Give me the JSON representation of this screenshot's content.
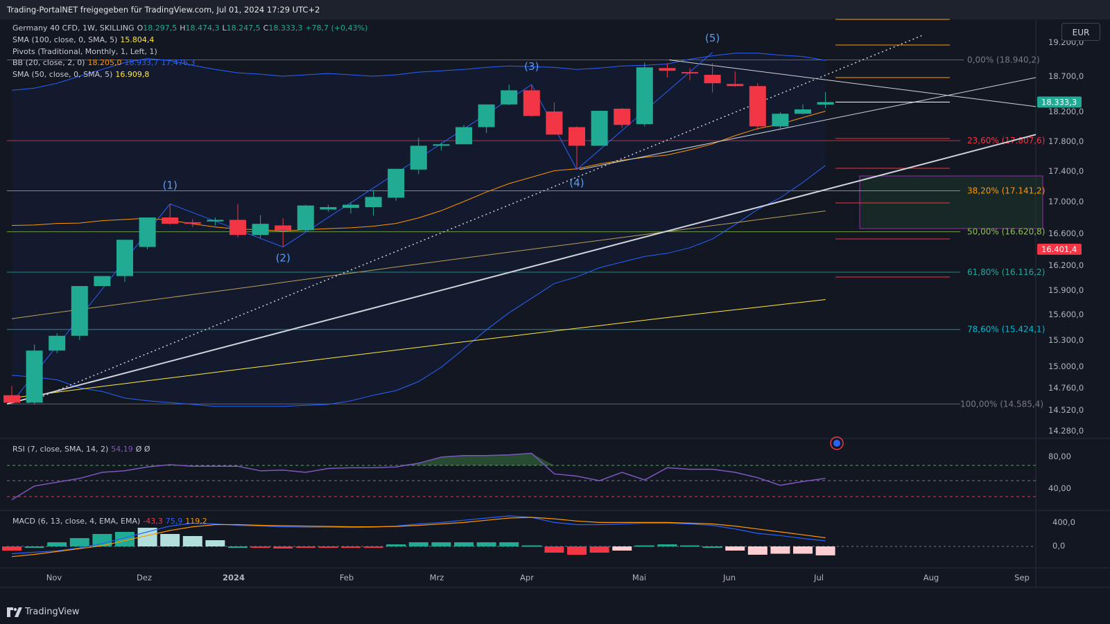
{
  "header": {
    "text": "Trading-PortalNET freigegeben für TradingView.com, Jul 01, 2024 17:29 UTC+2"
  },
  "currency": "EUR",
  "legend": {
    "symbol": "Germany 40 CFD, 1W, SKILLING",
    "o_label": "O",
    "o": "18.297,5",
    "h_label": "H",
    "h": "18.474,3",
    "l_label": "L",
    "l": "18.247,5",
    "c_label": "C",
    "c": "18.333,3",
    "chg": "+78,7 (+0,43%)",
    "sma100": "SMA (100, close, 0, SMA, 5)",
    "sma100_val": "15.804,4",
    "pivots": "Pivots (Traditional, Monthly, 1, Left, 1)",
    "bb": "BB (20, close, 2, 0)",
    "bb_mid": "18.205,0",
    "bb_up": "18.933,7",
    "bb_low": "17.476,3",
    "sma50": "SMA (50, close, 0, SMA, 5)",
    "sma50_val": "16.909,8"
  },
  "rsi_legend": {
    "label": "RSI (7, close, SMA, 14, 2)",
    "value": "54,19",
    "extra": "Ø  Ø"
  },
  "macd_legend": {
    "label": "MACD (6, 13, close, 4, EMA, EMA)",
    "hist": "-43,3",
    "macd": "75,9",
    "signal": "119,2"
  },
  "brand": "TradingView",
  "colors": {
    "up": "#22ab94",
    "down": "#f23645",
    "bb": "#2962ff",
    "sma50": "#ff9800",
    "sma100": "#ffeb3b",
    "price": "#22ab94",
    "pivot_now": "#f23645"
  },
  "chart_data": {
    "type": "candlestick",
    "price_axis": {
      "ticks": [
        14280,
        14520,
        14760,
        15000,
        15300,
        15600,
        15900,
        16200,
        16600,
        17000,
        17400,
        17800,
        18200,
        18700,
        19200
      ],
      "labels": [
        "14.280,0",
        "14.520,0",
        "14.760,0",
        "15.000,0",
        "15.300,0",
        "15.600,0",
        "15.900,0",
        "16.200,0",
        "16.600,0",
        "17.000,0",
        "17.400,0",
        "17.800,0",
        "18.200,0",
        "18.700,0",
        "19.200,0"
      ]
    },
    "time_axis": {
      "labels": [
        "Nov",
        "Dez",
        "2024",
        "Feb",
        "Mrz",
        "Apr",
        "Mai",
        "Jun",
        "Jul",
        "Aug",
        "Sep"
      ]
    },
    "candles": [
      {
        "o": 14680,
        "h": 14780,
        "l": 14580,
        "c": 14600
      },
      {
        "o": 14600,
        "h": 15250,
        "l": 14580,
        "c": 15180
      },
      {
        "o": 15180,
        "h": 15380,
        "l": 15150,
        "c": 15350
      },
      {
        "o": 15350,
        "h": 15950,
        "l": 15300,
        "c": 15950
      },
      {
        "o": 15950,
        "h": 16070,
        "l": 15950,
        "c": 16070
      },
      {
        "o": 16070,
        "h": 16520,
        "l": 16000,
        "c": 16520
      },
      {
        "o": 16430,
        "h": 16800,
        "l": 16400,
        "c": 16800
      },
      {
        "o": 16800,
        "h": 16970,
        "l": 16710,
        "c": 16720
      },
      {
        "o": 16740,
        "h": 16780,
        "l": 16680,
        "c": 16720
      },
      {
        "o": 16750,
        "h": 16800,
        "l": 16700,
        "c": 16770
      },
      {
        "o": 16770,
        "h": 16970,
        "l": 16550,
        "c": 16580
      },
      {
        "o": 16580,
        "h": 16830,
        "l": 16540,
        "c": 16720
      },
      {
        "o": 16700,
        "h": 16790,
        "l": 16430,
        "c": 16640
      },
      {
        "o": 16640,
        "h": 16960,
        "l": 16620,
        "c": 16950
      },
      {
        "o": 16900,
        "h": 16960,
        "l": 16870,
        "c": 16930
      },
      {
        "o": 16920,
        "h": 16990,
        "l": 16850,
        "c": 16960
      },
      {
        "o": 16930,
        "h": 17150,
        "l": 16820,
        "c": 17060
      },
      {
        "o": 17050,
        "h": 17420,
        "l": 17010,
        "c": 17430
      },
      {
        "o": 17420,
        "h": 17850,
        "l": 17360,
        "c": 17740
      },
      {
        "o": 17740,
        "h": 17780,
        "l": 17680,
        "c": 17760
      },
      {
        "o": 17760,
        "h": 18020,
        "l": 17760,
        "c": 17990
      },
      {
        "o": 17990,
        "h": 18290,
        "l": 17910,
        "c": 18300
      },
      {
        "o": 18300,
        "h": 18580,
        "l": 18290,
        "c": 18500
      },
      {
        "o": 18500,
        "h": 18570,
        "l": 18130,
        "c": 18140
      },
      {
        "o": 18200,
        "h": 18330,
        "l": 17900,
        "c": 17890
      },
      {
        "o": 17990,
        "h": 18000,
        "l": 17420,
        "c": 17740
      },
      {
        "o": 17740,
        "h": 18210,
        "l": 17740,
        "c": 18210
      },
      {
        "o": 18240,
        "h": 18250,
        "l": 17980,
        "c": 18020
      },
      {
        "o": 18030,
        "h": 18900,
        "l": 18000,
        "c": 18830
      },
      {
        "o": 18820,
        "h": 18890,
        "l": 18680,
        "c": 18780
      },
      {
        "o": 18760,
        "h": 18820,
        "l": 18640,
        "c": 18740
      },
      {
        "o": 18720,
        "h": 18890,
        "l": 18470,
        "c": 18600
      },
      {
        "o": 18590,
        "h": 18770,
        "l": 18550,
        "c": 18560
      },
      {
        "o": 18560,
        "h": 18600,
        "l": 17950,
        "c": 18000
      },
      {
        "o": 18000,
        "h": 18190,
        "l": 17950,
        "c": 18170
      },
      {
        "o": 18170,
        "h": 18300,
        "l": 18160,
        "c": 18230
      },
      {
        "o": 18297.5,
        "h": 18474.3,
        "l": 18247.5,
        "c": 18333.3
      }
    ],
    "fib_levels": [
      {
        "label": "0,00% (18.940,2)",
        "value": 18940.2
      },
      {
        "label": "23,60% (17.807,6)",
        "value": 17807.6
      },
      {
        "label": "38,20% (17.141,2)",
        "value": 17141.2
      },
      {
        "label": "50,00% (16.620,8)",
        "value": 16620.8
      },
      {
        "label": "61,80% (16.116,2)",
        "value": 16116.2
      },
      {
        "label": "78,60% (15.424,1)",
        "value": 15424.1
      },
      {
        "label": "100,00% (14.585,4)",
        "value": 14585.4
      }
    ],
    "price_tags": [
      {
        "label": "18.333,3",
        "value": 18333.3
      },
      {
        "label": "16.401,4",
        "value": 16401.4
      }
    ],
    "wave_labels": [
      "(1)",
      "(2)",
      "(3)",
      "(4)",
      "(5)"
    ],
    "rsi_axis": [
      "80,00",
      "40,00"
    ],
    "macd_axis": [
      "400,0",
      "0,0"
    ]
  }
}
